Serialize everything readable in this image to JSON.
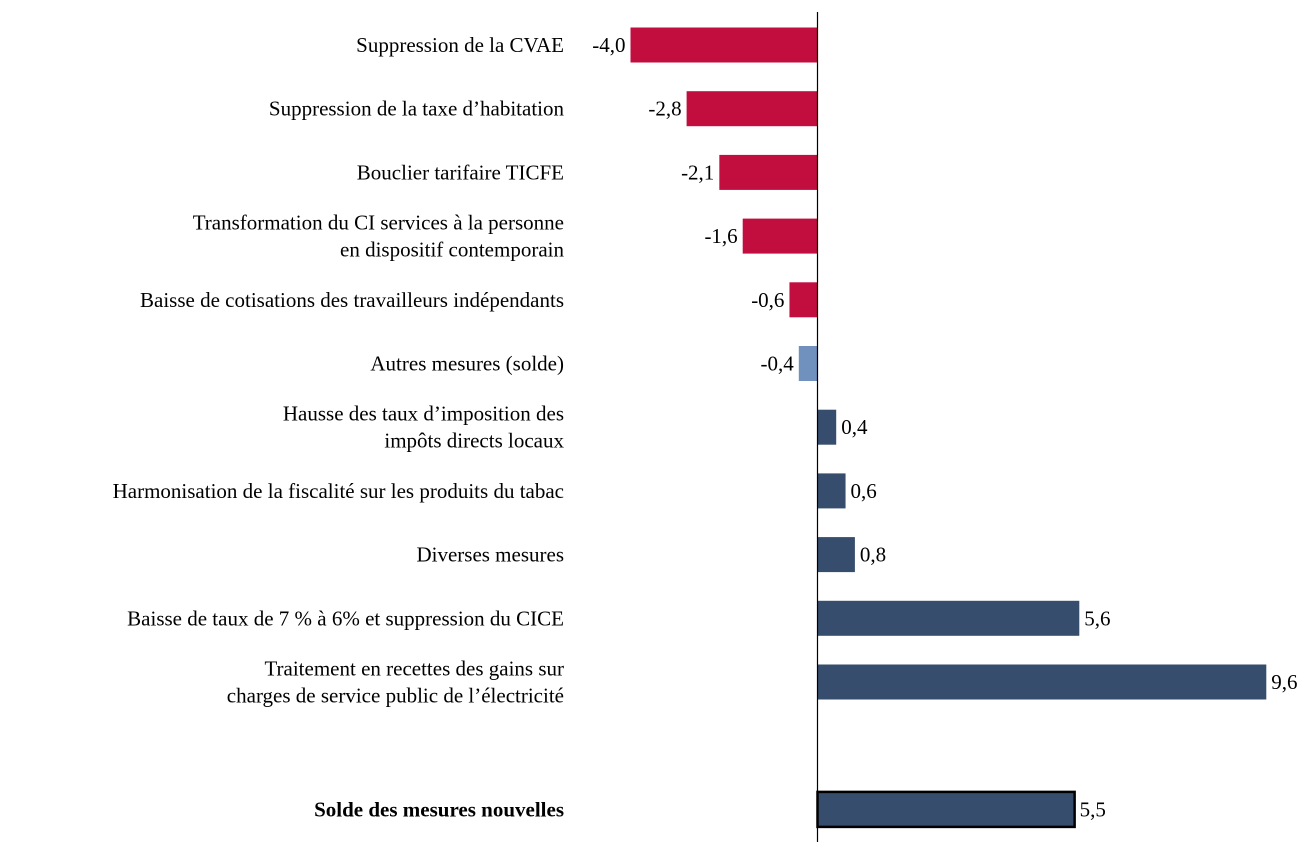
{
  "chart_data": {
    "type": "bar",
    "orientation": "horizontal",
    "categories": [
      "Suppression de la CVAE",
      "Suppression de la taxe d’habitation",
      "Bouclier tarifaire TICFE",
      "Transformation du CI services à la personne\nen dispositif contemporain",
      "Baisse de cotisations des travailleurs indépendants",
      "Autres mesures (solde)",
      "Hausse des taux d’imposition des\nimpôts directs locaux",
      "Harmonisation de la fiscalité sur les produits du tabac",
      "Diverses mesures",
      "Baisse de taux de 7 % à 6% et suppression du CICE",
      "Traitement en recettes des gains sur\ncharges de service public de l’électricité"
    ],
    "values": [
      -4.0,
      -2.8,
      -2.1,
      -1.6,
      -0.6,
      -0.4,
      0.4,
      0.6,
      0.8,
      5.6,
      9.6
    ],
    "value_labels": [
      "-4,0",
      "-2,8",
      "-2,1",
      "-1,6",
      "-0,6",
      "-0,4",
      "0,4",
      "0,6",
      "0,8",
      "5,6",
      "9,6"
    ],
    "total": {
      "label": "Solde des mesures nouvelles",
      "value": 5.5,
      "value_label": "5,5"
    },
    "colors": {
      "negative": "#C20E3E",
      "other": "#7090BE",
      "positive": "#364D6D",
      "total_border": "#000000"
    },
    "xlim": [
      -4.0,
      9.6
    ],
    "grid": false,
    "legend": "none",
    "title": "",
    "xlabel": "",
    "ylabel": ""
  }
}
